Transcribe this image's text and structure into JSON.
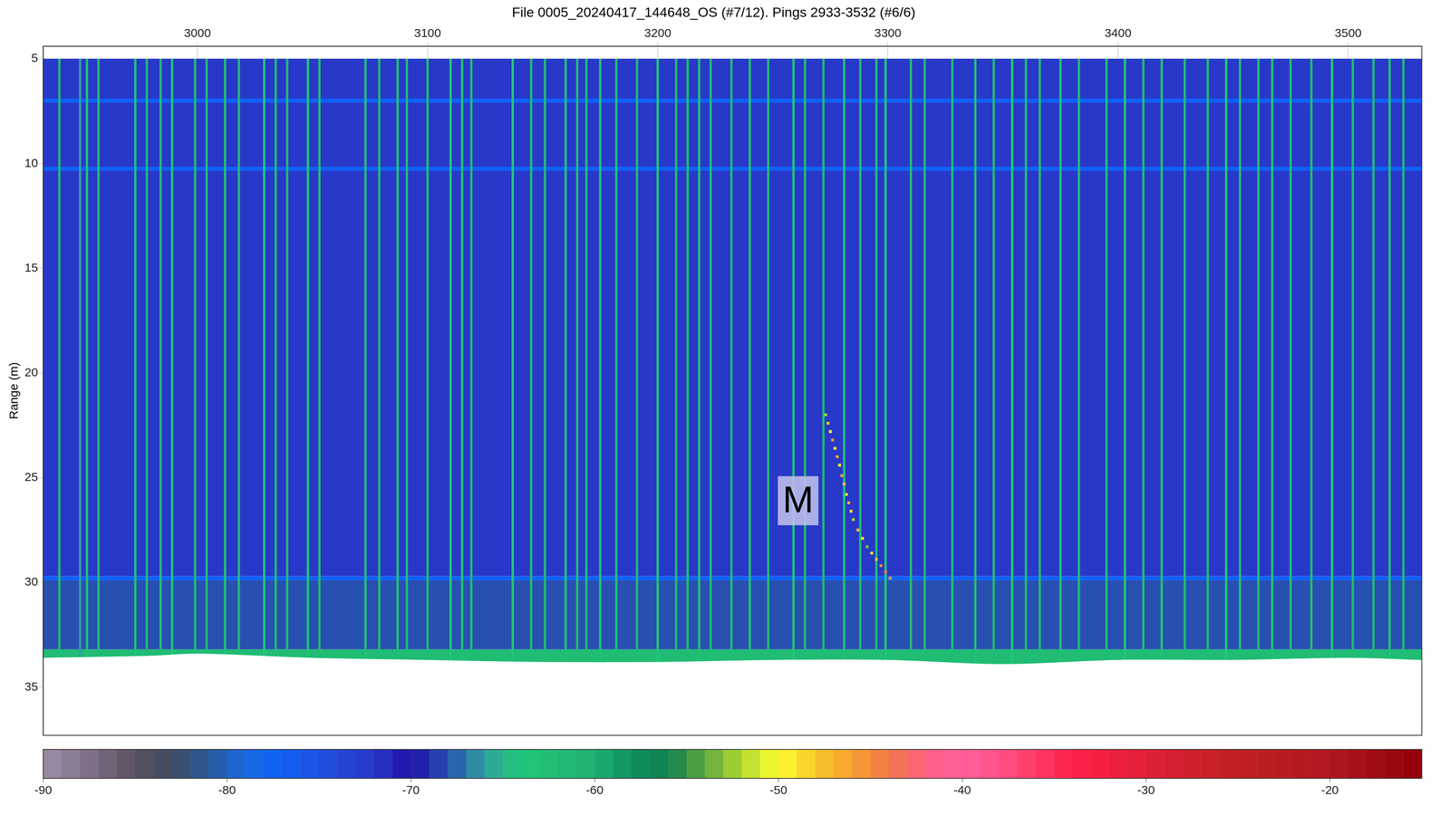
{
  "chart_data": {
    "type": "heatmap",
    "title": "File 0005_20240417_144648_OS (#7/12). Pings 2933-3532 (#6/6)",
    "y_label": "Range (m)",
    "xlim": [
      2933,
      3532
    ],
    "xticks": [
      3000,
      3100,
      3200,
      3300,
      3400,
      3500
    ],
    "ylim": [
      37.3,
      4.4
    ],
    "yticks": [
      5,
      10,
      15,
      20,
      25,
      30,
      35
    ],
    "grid": true,
    "colorbar": {
      "range": [
        -90,
        -15
      ],
      "ticks": [
        -90,
        -80,
        -70,
        -60,
        -50,
        -40,
        -30,
        -20
      ]
    },
    "layers": [
      {
        "from": 5,
        "to": 29.7,
        "value": -72
      },
      {
        "from": 6.9,
        "to": 7.1,
        "value": -77
      },
      {
        "from": 10.15,
        "to": 10.35,
        "value": -77
      },
      {
        "from": 29.7,
        "to": 29.9,
        "value": -77
      },
      {
        "from": 29.9,
        "to": 33.2,
        "value": -68
      },
      {
        "from": 33.2,
        "to": 33.9,
        "value": -62
      }
    ],
    "stripes": {
      "from": 5,
      "to": 33.9,
      "pings": [
        2940,
        2949,
        2952,
        2957,
        2973,
        2978,
        2984,
        2989,
        2999,
        3004,
        3012,
        3018,
        3029,
        3034,
        3039,
        3048,
        3053,
        3073,
        3079,
        3087,
        3091,
        3100,
        3110,
        3115,
        3119,
        3137,
        3145,
        3151,
        3160,
        3165,
        3169,
        3175,
        3182,
        3191,
        3200,
        3208,
        3213,
        3218,
        3223,
        3232,
        3240,
        3248,
        3259,
        3264,
        3272,
        3281,
        3288,
        3295,
        3299,
        3310,
        3316,
        3328,
        3338,
        3346,
        3354,
        3360,
        3366,
        3375,
        3383,
        3395,
        3403,
        3411,
        3419,
        3429,
        3439,
        3447,
        3453,
        3461,
        3467,
        3475,
        3484,
        3493,
        3502,
        3511,
        3518,
        3524
      ],
      "values": [
        -62,
        -66,
        -63,
        -62,
        -63,
        -62,
        -62,
        -64,
        -62,
        -62,
        -63,
        -62,
        -64,
        -62,
        -62,
        -64,
        -62,
        -63,
        -62,
        -63,
        -62,
        -62,
        -64,
        -63,
        -62,
        -64,
        -62,
        -62,
        -63,
        -62,
        -62,
        -63,
        -62,
        -62,
        -64,
        -62,
        -62,
        -63,
        -62,
        -62,
        -63,
        -62,
        -64,
        -62,
        -62,
        -63,
        -62,
        -62,
        -64,
        -62,
        -62,
        -62,
        -63,
        -62,
        -64,
        -62,
        -62,
        -63,
        -62,
        -62,
        -64,
        -62,
        -63,
        -62,
        -62,
        -64,
        -62,
        -62,
        -63,
        -62,
        -62,
        -64,
        -62,
        -62,
        -63,
        -62
      ]
    },
    "bottom": {
      "pings": [
        2933,
        2980,
        3000,
        3050,
        3100,
        3150,
        3200,
        3250,
        3300,
        3350,
        3400,
        3450,
        3500,
        3532
      ],
      "ranges": [
        33.6,
        33.5,
        33.4,
        33.6,
        33.7,
        33.8,
        33.8,
        33.7,
        33.7,
        33.9,
        33.7,
        33.7,
        33.6,
        33.7
      ]
    },
    "track": {
      "pings": [
        3273,
        3274,
        3275,
        3276,
        3277,
        3278,
        3279,
        3280,
        3281,
        3282,
        3283,
        3284,
        3285,
        3287,
        3289,
        3291,
        3293,
        3295,
        3297,
        3299,
        3301
      ],
      "ranges": [
        22.0,
        22.4,
        22.8,
        23.2,
        23.6,
        24.0,
        24.4,
        24.9,
        25.3,
        25.8,
        26.2,
        26.6,
        27.0,
        27.5,
        27.9,
        28.3,
        28.6,
        28.9,
        29.2,
        29.5,
        29.8
      ],
      "values": [
        -52,
        -48,
        -50,
        -46,
        -49,
        -47,
        -50,
        -46,
        -48,
        -51,
        -47,
        -49,
        -52,
        -48,
        -50,
        -53,
        -49,
        -47,
        -45,
        -44,
        -46
      ]
    },
    "annotations": [
      {
        "text": "M",
        "x": 3261,
        "y": 26.1
      }
    ]
  }
}
